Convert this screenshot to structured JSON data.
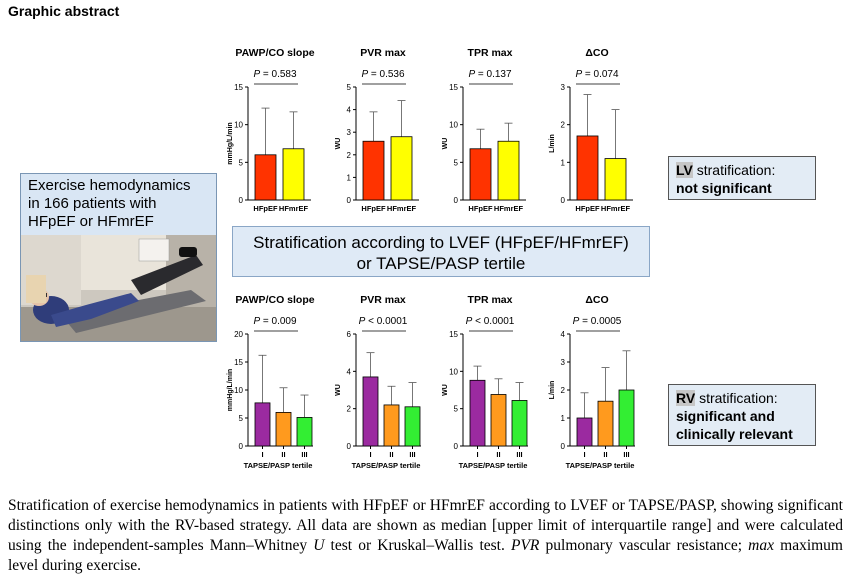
{
  "header": {
    "title": "Graphic abstract"
  },
  "patient_box": {
    "line1": "Exercise hemodynamics",
    "line2": "in 166 patients with",
    "line3": "HFpEF or HFmrEF"
  },
  "strat_box": {
    "line1": "Stratification according to LVEF (HFpEF/HFmrEF)",
    "line2": "or TAPSE/PASP tertile"
  },
  "lv_box": {
    "prefix": "LV",
    "suffix": " stratification:",
    "result": "not significant"
  },
  "rv_box": {
    "prefix": "RV",
    "suffix": " stratification:",
    "result1": "significant and",
    "result2": "clinically relevant"
  },
  "caption": {
    "part1": "Stratification of exercise hemodynamics in patients with HFpEF or HFmrEF according to LVEF or TAPSE/PASP, showing significant distinctions only with the RV-based strategy. All data are shown as median [upper limit of interquartile range] and were calculated using the independent-samples Mann–Whitney ",
    "u": "U",
    "part2": " test or Kruskal–Wallis test. ",
    "pvr": "PVR",
    "part3": " pulmonary vascular resistance; ",
    "max": "max",
    "part4": " maximum level during exercise."
  },
  "colors": {
    "hfpef": "#ff3300",
    "hfmref": "#ffff00",
    "t1": "#9b2aa0",
    "t2": "#ff9a1e",
    "t3": "#33ee33"
  },
  "chart_data": [
    {
      "type": "bar",
      "title": "PAWP/CO slope",
      "pvalue": "P = 0.583",
      "ylabel": "mmHg/L/min",
      "ylim": [
        0,
        15
      ],
      "yticks": [
        "0",
        "5",
        "10",
        "15"
      ],
      "categories": [
        "HFpEF",
        "HFmrEF"
      ],
      "values": [
        6.0,
        6.8
      ],
      "errors": [
        12.2,
        11.7
      ],
      "xlabel": ""
    },
    {
      "type": "bar",
      "title": "PVR max",
      "pvalue": "P = 0.536",
      "ylabel": "WU",
      "ylim": [
        0,
        5
      ],
      "yticks": [
        "0",
        "1",
        "2",
        "3",
        "4",
        "5"
      ],
      "categories": [
        "HFpEF",
        "HFmrEF"
      ],
      "values": [
        2.6,
        2.8
      ],
      "errors": [
        3.9,
        4.4
      ],
      "xlabel": ""
    },
    {
      "type": "bar",
      "title": "TPR max",
      "pvalue": "P = 0.137",
      "ylabel": "WU",
      "ylim": [
        0,
        15
      ],
      "yticks": [
        "0",
        "5",
        "10",
        "15"
      ],
      "categories": [
        "HFpEF",
        "HFmrEF"
      ],
      "values": [
        6.8,
        7.8
      ],
      "errors": [
        9.4,
        10.2
      ],
      "xlabel": ""
    },
    {
      "type": "bar",
      "title": "ΔCO",
      "pvalue": "P = 0.074",
      "ylabel": "L/min",
      "ylim": [
        0,
        3
      ],
      "yticks": [
        "0",
        "1",
        "2",
        "3"
      ],
      "categories": [
        "HFpEF",
        "HFmrEF"
      ],
      "values": [
        1.7,
        1.1
      ],
      "errors": [
        2.8,
        2.4
      ],
      "xlabel": ""
    },
    {
      "type": "bar",
      "title": "PAWP/CO slope",
      "pvalue": "P = 0.009",
      "ylabel": "mmHg/L/min",
      "ylim": [
        0,
        20
      ],
      "yticks": [
        "0",
        "5",
        "10",
        "15",
        "20"
      ],
      "categories": [
        "I",
        "II",
        "III"
      ],
      "values": [
        7.7,
        6.0,
        5.1
      ],
      "errors": [
        16.2,
        10.4,
        9.1
      ],
      "xlabel": "TAPSE/PASP tertile"
    },
    {
      "type": "bar",
      "title": "PVR max",
      "pvalue": "P < 0.0001",
      "ylabel": "WU",
      "ylim": [
        0,
        6
      ],
      "yticks": [
        "0",
        "2",
        "4",
        "6"
      ],
      "categories": [
        "I",
        "II",
        "III"
      ],
      "values": [
        3.7,
        2.2,
        2.1
      ],
      "errors": [
        5.0,
        3.2,
        3.4
      ],
      "xlabel": "TAPSE/PASP tertile"
    },
    {
      "type": "bar",
      "title": "TPR max",
      "pvalue": "P < 0.0001",
      "ylabel": "WU",
      "ylim": [
        0,
        15
      ],
      "yticks": [
        "0",
        "5",
        "10",
        "15"
      ],
      "categories": [
        "I",
        "II",
        "III"
      ],
      "values": [
        8.8,
        6.9,
        6.1
      ],
      "errors": [
        10.7,
        9.0,
        8.5
      ],
      "xlabel": "TAPSE/PASP tertile"
    },
    {
      "type": "bar",
      "title": "ΔCO",
      "pvalue": "P = 0.0005",
      "ylabel": "L/min",
      "ylim": [
        0,
        4
      ],
      "yticks": [
        "0",
        "1",
        "2",
        "3",
        "4"
      ],
      "categories": [
        "I",
        "II",
        "III"
      ],
      "values": [
        1.0,
        1.6,
        2.0
      ],
      "errors": [
        1.9,
        2.8,
        3.4
      ],
      "xlabel": "TAPSE/PASP tertile"
    }
  ]
}
